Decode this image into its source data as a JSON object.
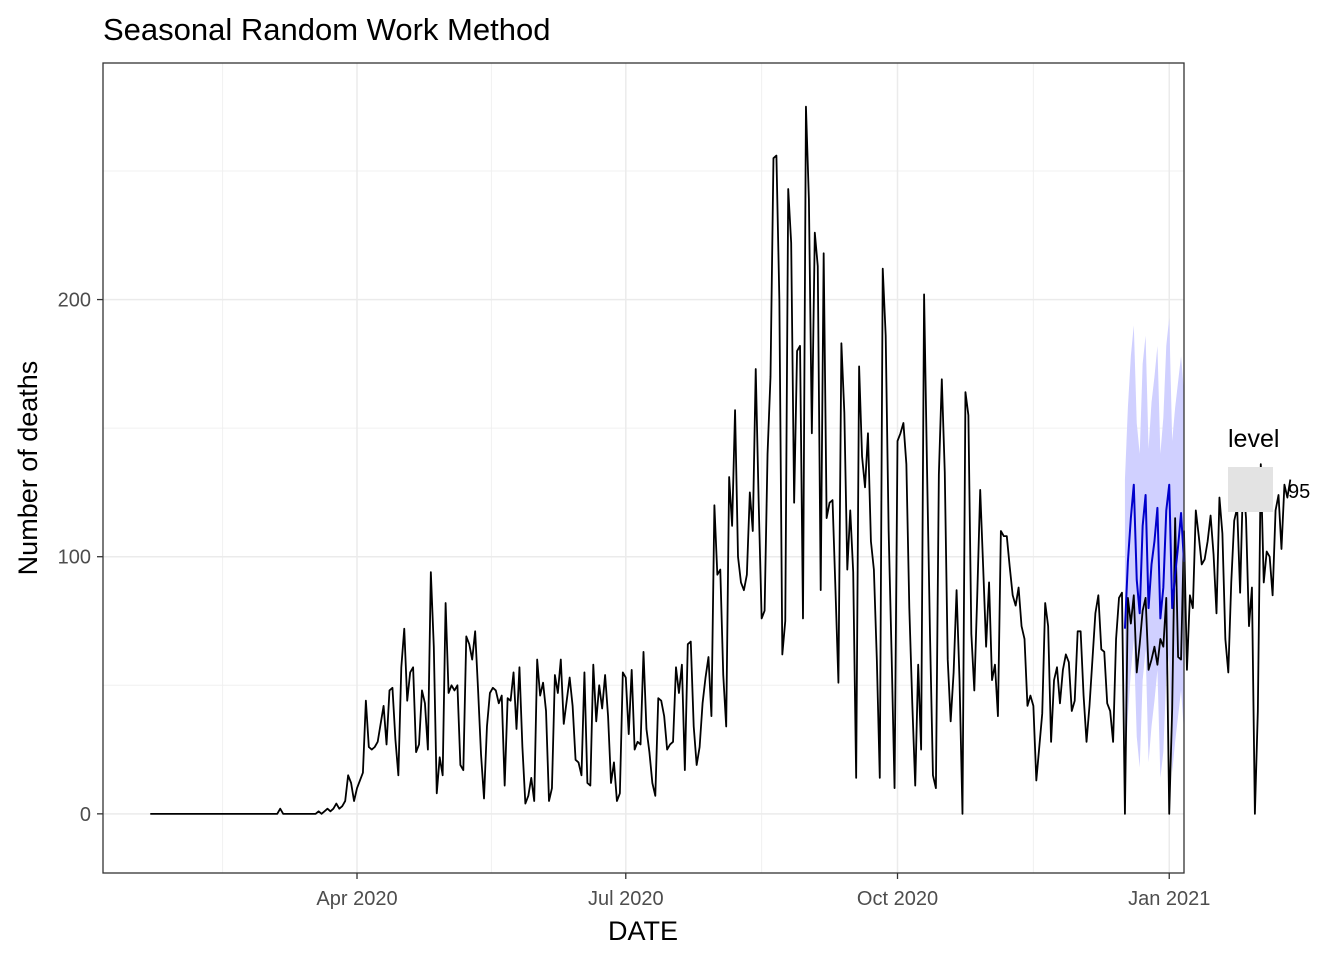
{
  "chart_data": {
    "type": "line",
    "title": "Seasonal Random Work Method",
    "xlabel": "DATE",
    "ylabel": "Number of deaths",
    "x_range": [
      "2020-01-06",
      "2021-01-06"
    ],
    "y_range": [
      -23,
      292
    ],
    "x_ticks": [
      {
        "date": "2020-04-01",
        "label": "Apr 2020"
      },
      {
        "date": "2020-07-01",
        "label": "Jul 2020"
      },
      {
        "date": "2020-10-01",
        "label": "Oct 2020"
      },
      {
        "date": "2021-01-01",
        "label": "Jan 2021"
      }
    ],
    "y_ticks": [
      0,
      100,
      200
    ],
    "grid": true,
    "legend": {
      "title": "level",
      "items": [
        {
          "label": "95",
          "color": "#e3e3e3"
        }
      ],
      "placement": "right"
    },
    "series": [
      {
        "role": "observed",
        "color": "#000000",
        "start_date": "2020-01-22",
        "values": [
          0,
          0,
          0,
          0,
          0,
          0,
          0,
          0,
          0,
          0,
          0,
          0,
          0,
          0,
          0,
          0,
          0,
          0,
          0,
          0,
          0,
          0,
          0,
          0,
          0,
          0,
          0,
          0,
          0,
          0,
          0,
          0,
          0,
          0,
          0,
          0,
          0,
          0,
          0,
          0,
          0,
          0,
          0,
          0,
          2,
          0,
          0,
          0,
          0,
          0,
          0,
          0,
          0,
          0,
          0,
          0,
          0,
          1,
          0,
          1,
          2,
          1,
          2,
          4,
          2,
          3,
          5,
          15,
          12,
          5,
          10,
          13,
          16,
          44,
          26,
          25,
          26,
          28,
          35,
          42,
          27,
          48,
          49,
          29,
          15,
          57,
          72,
          44,
          55,
          57,
          24,
          27,
          48,
          43,
          25,
          94,
          65,
          8,
          22,
          15,
          82,
          47,
          50,
          48,
          50,
          19,
          17,
          69,
          66,
          60,
          71,
          48,
          23,
          6,
          34,
          47,
          49,
          48,
          43,
          46,
          11,
          45,
          44,
          55,
          33,
          57,
          26,
          4,
          7,
          14,
          5,
          60,
          46,
          51,
          40,
          5,
          10,
          54,
          47,
          60,
          35,
          44,
          53,
          42,
          21,
          20,
          15,
          55,
          12,
          11,
          58,
          36,
          50,
          41,
          54,
          38,
          12,
          20,
          5,
          8,
          55,
          53,
          31,
          56,
          25,
          28,
          27,
          63,
          33,
          24,
          12,
          7,
          45,
          44,
          38,
          25,
          27,
          28,
          57,
          47,
          58,
          17,
          66,
          67,
          34,
          19,
          26,
          43,
          53,
          61,
          38,
          120,
          93,
          95,
          54,
          34,
          131,
          112,
          157,
          100,
          90,
          87,
          93,
          125,
          110,
          173,
          121,
          76,
          79,
          140,
          170,
          255,
          256,
          200,
          62,
          75,
          243,
          222,
          121,
          180,
          182,
          76,
          275,
          239,
          148,
          226,
          213,
          87,
          218,
          115,
          121,
          122,
          87,
          51,
          183,
          156,
          95,
          118,
          94,
          14,
          174,
          139,
          127,
          148,
          106,
          95,
          60,
          14,
          212,
          186,
          110,
          62,
          10,
          145,
          148,
          152,
          136,
          80,
          43,
          11,
          58,
          25,
          202,
          134,
          70,
          15,
          10,
          132,
          169,
          133,
          60,
          36,
          55,
          87,
          52,
          0,
          164,
          155,
          70,
          48,
          85,
          126,
          96,
          65,
          90,
          52,
          58,
          38,
          110,
          108,
          108,
          96,
          85,
          81,
          88,
          73,
          68,
          42,
          46,
          42,
          13,
          26,
          39,
          82,
          73,
          28,
          52,
          57,
          43,
          56,
          62,
          59,
          40,
          44,
          71,
          71,
          46,
          28,
          42,
          60,
          78,
          85,
          64,
          63,
          43,
          40,
          28,
          68,
          84,
          86,
          0,
          84,
          74,
          85,
          55,
          66,
          79,
          84,
          56,
          60,
          65,
          58,
          68,
          65,
          84,
          0,
          41,
          115,
          61,
          60,
          110,
          56,
          85,
          80,
          118,
          108,
          97,
          99,
          106,
          116,
          101,
          78,
          123,
          109,
          68,
          55,
          90,
          114,
          119,
          86,
          130,
          115,
          73,
          88,
          0,
          40,
          136,
          90,
          102,
          100,
          85,
          118,
          124,
          103,
          128,
          123,
          130
        ]
      },
      {
        "role": "forecast",
        "color": "#0000cc",
        "band_color": "#d0d0ff",
        "band_level": "95",
        "start_date": "2020-12-17",
        "values": [
          72,
          98,
          115,
          128,
          91,
          78,
          112,
          124,
          80,
          97,
          106,
          119,
          76,
          88,
          118,
          128,
          80,
          93,
          104,
          117,
          98
        ],
        "lower": [
          15,
          38,
          55,
          68,
          30,
          18,
          52,
          64,
          20,
          34,
          44,
          56,
          14,
          24,
          54,
          62,
          16,
          28,
          38,
          48,
          32
        ],
        "upper": [
          130,
          158,
          178,
          190,
          152,
          140,
          175,
          186,
          142,
          160,
          170,
          182,
          140,
          154,
          182,
          193,
          145,
          158,
          168,
          178,
          164
        ]
      }
    ]
  }
}
